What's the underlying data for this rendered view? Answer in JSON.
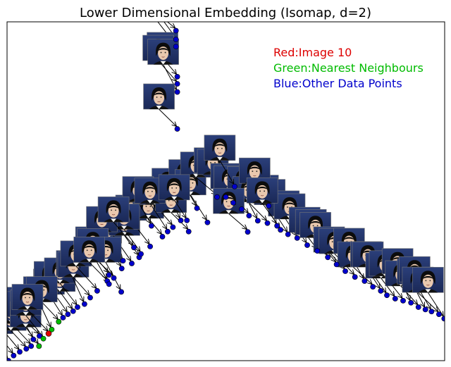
{
  "chart_data": {
    "type": "scatter",
    "title": "Lower Dimensional Embedding (Isomap, d=2)",
    "xlabel": "",
    "ylabel": "",
    "xlim": [
      0,
      100
    ],
    "ylim": [
      0,
      100
    ],
    "grid": false,
    "axis_ticks": false,
    "legend_placement": "top-right",
    "legend": [
      {
        "label": "Red:Image 10",
        "color": "#dd0000"
      },
      {
        "label": "Green:Nearest Neighbours",
        "color": "#00bb00"
      },
      {
        "label": "Blue:Other Data Points",
        "color": "#0000cc"
      }
    ],
    "marker_annotation": "face thumbnail with arrow to point",
    "series": [
      {
        "role": "selected",
        "color": "#dd0000",
        "points": [
          [
            9.5,
            8.0
          ]
        ]
      },
      {
        "role": "neighbours",
        "color": "#00bb00",
        "points": [
          [
            7.3,
            4.3
          ],
          [
            8.3,
            6.5
          ],
          [
            10.2,
            9.2
          ],
          [
            11.8,
            11.5
          ]
        ]
      },
      {
        "role": "other",
        "color": "#0000cc",
        "points": [
          [
            0.3,
            0.0
          ],
          [
            1.5,
            1.5
          ],
          [
            2.9,
            2.6
          ],
          [
            4.4,
            3.5
          ],
          [
            5.5,
            4.3
          ],
          [
            6.0,
            6.3
          ],
          [
            7.4,
            7.3
          ],
          [
            12.8,
            12.7
          ],
          [
            13.9,
            13.7
          ],
          [
            15.1,
            14.6
          ],
          [
            16.1,
            15.8
          ],
          [
            17.7,
            16.7
          ],
          [
            19.0,
            18.6
          ],
          [
            20.6,
            20.6
          ],
          [
            22.9,
            23.5
          ],
          [
            24.4,
            24.4
          ],
          [
            26.2,
            27.2
          ],
          [
            28.5,
            28.7
          ],
          [
            30.2,
            30.5
          ],
          [
            32.7,
            33.7
          ],
          [
            35.5,
            36.6
          ],
          [
            37.9,
            39.4
          ],
          [
            39.7,
            41.4
          ],
          [
            41.5,
            38.1
          ],
          [
            43.4,
            45.0
          ],
          [
            45.8,
            40.8
          ],
          [
            48.0,
            48.3
          ],
          [
            50.0,
            48.3
          ],
          [
            51.7,
            46.6
          ],
          [
            53.6,
            44.7
          ],
          [
            55.3,
            42.8
          ],
          [
            57.3,
            41.3
          ],
          [
            59.5,
            40.6
          ],
          [
            61.7,
            39.8
          ],
          [
            64.2,
            37.3
          ],
          [
            66.3,
            36.2
          ],
          [
            68.6,
            34.1
          ],
          [
            70.9,
            32.4
          ],
          [
            73.3,
            30.5
          ],
          [
            75.3,
            28.4
          ],
          [
            77.3,
            26.4
          ],
          [
            79.5,
            24.7
          ],
          [
            81.7,
            23.5
          ],
          [
            83.6,
            21.8
          ],
          [
            85.4,
            20.6
          ],
          [
            86.8,
            19.3
          ],
          [
            88.7,
            18.3
          ],
          [
            90.5,
            17.7
          ],
          [
            92.3,
            17.1
          ],
          [
            94.0,
            15.8
          ],
          [
            95.6,
            15.1
          ],
          [
            97.0,
            14.5
          ],
          [
            98.7,
            13.7
          ],
          [
            99.9,
            12.4
          ],
          [
            38.6,
            97.4
          ],
          [
            38.6,
            94.8
          ],
          [
            38.6,
            92.7
          ],
          [
            38.9,
            83.8
          ],
          [
            38.9,
            81.7
          ],
          [
            38.9,
            79.3
          ],
          [
            38.9,
            68.4
          ],
          [
            33.0,
            39.8
          ],
          [
            36.7,
            38.1
          ],
          [
            41.1,
            41.4
          ],
          [
            30.6,
            31.5
          ],
          [
            26.5,
            29.5
          ],
          [
            23.3,
            25.3
          ],
          [
            29.0,
            33.4
          ],
          [
            26.1,
            20.3
          ],
          [
            23.3,
            22.6
          ],
          [
            52.0,
            51.4
          ],
          [
            55.0,
            38.0
          ],
          [
            59.8,
            45.7
          ],
          [
            62.5,
            38.6
          ]
        ]
      }
    ]
  }
}
